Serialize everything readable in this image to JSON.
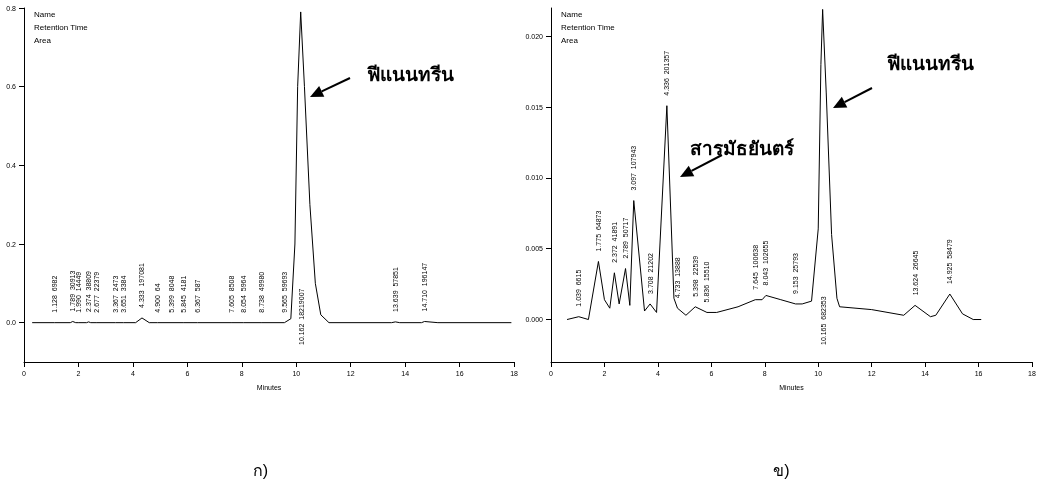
{
  "chart_data": [
    {
      "type": "line",
      "title": "ก)",
      "xlabel": "Minutes",
      "xlim": [
        0,
        18
      ],
      "xticks": [
        0,
        2,
        4,
        6,
        8,
        10,
        12,
        14,
        16,
        18
      ],
      "ylim": [
        -0.1,
        0.8
      ],
      "yticks": [
        {
          "value": 0,
          "label": "0.0"
        },
        0.2,
        0.4,
        0.6,
        0.8
      ],
      "annotations": [
        "Name",
        "Retention Time",
        "Area",
        "ฟีแนนทรีน",
        "10.162  18219007",
        {
          "text": "1.128  6982",
          "x": 1.128,
          "y": 0
        },
        {
          "text": "1.789  30913",
          "x": 1.789,
          "y": 0.003
        },
        {
          "text": "1.990  14449",
          "x": 1.99,
          "y": 0
        },
        {
          "text": "2.374  38809",
          "x": 2.374,
          "y": 0.002
        },
        {
          "text": "2.677  22379",
          "x": 2.677,
          "y": 0
        },
        {
          "text": "3.367  2473",
          "x": 3.367,
          "y": 0
        },
        {
          "text": "3.651  3384",
          "x": 3.651,
          "y": 0
        },
        {
          "text": "4.333  197081",
          "x": 4.333,
          "y": 0.012
        },
        {
          "text": "4.900  64",
          "x": 4.9,
          "y": 0
        },
        {
          "text": "5.399  8048",
          "x": 5.399,
          "y": 0
        },
        {
          "text": "5.845  4181",
          "x": 5.845,
          "y": 0
        },
        {
          "text": "6.367  587",
          "x": 6.367,
          "y": 0
        },
        {
          "text": "7.605  8508",
          "x": 7.605,
          "y": 0
        },
        {
          "text": "8.054  5964",
          "x": 8.054,
          "y": 0
        },
        {
          "text": "8.738  49980",
          "x": 8.738,
          "y": 0
        },
        {
          "text": "9.565  59693",
          "x": 9.565,
          "y": 0
        },
        {
          "text": "13.639  57851",
          "x": 13.639,
          "y": 0.002
        },
        {
          "text": "14.710  196147",
          "x": 14.71,
          "y": 0.003
        }
      ],
      "series": [
        {
          "color": "#000000",
          "marker": "none",
          "x": [
            0.3,
            1.128,
            1.7,
            1.789,
            1.9,
            1.99,
            2.3,
            2.374,
            2.45,
            2.677,
            3.367,
            3.651,
            4.1,
            4.333,
            4.6,
            4.9,
            5.399,
            5.845,
            6.367,
            7.605,
            8.054,
            8.738,
            9.565,
            9.8,
            9.95,
            10.05,
            10.162,
            10.3,
            10.5,
            10.7,
            10.9,
            11.2,
            13.5,
            13.639,
            13.8,
            14.6,
            14.71,
            15.2,
            17.9
          ],
          "values": [
            0,
            0,
            0,
            0.003,
            0,
            0,
            0,
            0.002,
            0,
            0,
            0,
            0,
            0,
            0.012,
            0,
            0,
            0,
            0,
            0,
            0,
            0,
            0,
            0,
            0.01,
            0.2,
            0.6,
            0.79,
            0.6,
            0.3,
            0.1,
            0.02,
            0,
            0,
            0.002,
            0,
            0,
            0.003,
            0,
            0
          ]
        }
      ]
    },
    {
      "type": "line",
      "title": "ข)",
      "xlabel": "Minutes",
      "xlim": [
        0,
        18
      ],
      "xticks": [
        0,
        2,
        4,
        6,
        8,
        10,
        12,
        14,
        16,
        18
      ],
      "ylim": [
        -0.003,
        0.022
      ],
      "yticks": [
        {
          "value": 0,
          "label": "0.000"
        },
        {
          "value": 0.005,
          "label": "0.005"
        },
        {
          "value": 0.01,
          "label": "0.010"
        },
        {
          "value": 0.015,
          "label": "0.015"
        },
        {
          "value": 0.02,
          "label": "0.020"
        }
      ],
      "annotations": [
        "Name",
        "Retention Time",
        "Area",
        "สารมัธยันตร์",
        "ฟีแนนทรีน",
        "10.165  682353",
        {
          "text": "1.039  6615",
          "x": 1.039,
          "y": 0.0002
        },
        {
          "text": "1.775  64873",
          "x": 1.775,
          "y": 0.0041
        },
        {
          "text": "2.372  41891",
          "x": 2.372,
          "y": 0.0033
        },
        {
          "text": "2.789  50717",
          "x": 2.789,
          "y": 0.0036
        },
        {
          "text": "3.097  107943",
          "x": 3.097,
          "y": 0.0084
        },
        {
          "text": "3.708  21202",
          "x": 3.708,
          "y": 0.0011
        },
        {
          "text": "4.336  201357",
          "x": 4.336,
          "y": 0.0151
        },
        {
          "text": "4.733  13888",
          "x": 4.733,
          "y": 0.0008
        },
        {
          "text": "5.398  22539",
          "x": 5.398,
          "y": 0.0009
        },
        {
          "text": "5.836  15510",
          "x": 5.836,
          "y": 0.0005
        },
        {
          "text": "7.645  100638",
          "x": 7.645,
          "y": 0.0014
        },
        {
          "text": "8.043  102655",
          "x": 8.043,
          "y": 0.0017
        },
        {
          "text": "9.153  25793",
          "x": 9.153,
          "y": 0.0011
        },
        {
          "text": "13.624  26645",
          "x": 13.624,
          "y": 0.001
        },
        {
          "text": "14.925  58479",
          "x": 14.925,
          "y": 0.0018
        }
      ],
      "series": [
        {
          "color": "#000000",
          "marker": "none",
          "x": [
            0.6,
            1.039,
            1.4,
            1.775,
            2.0,
            2.2,
            2.372,
            2.55,
            2.789,
            2.95,
            3.097,
            3.5,
            3.708,
            3.95,
            4.336,
            4.6,
            4.733,
            5.05,
            5.398,
            5.836,
            6.2,
            7.0,
            7.645,
            7.9,
            8.043,
            8.6,
            9.153,
            9.4,
            9.75,
            10.0,
            10.1,
            10.165,
            10.3,
            10.5,
            10.7,
            10.8,
            12.0,
            13.2,
            13.624,
            14.2,
            14.4,
            14.925,
            15.4,
            15.8,
            16.1
          ],
          "values": [
            0,
            0.0002,
            0,
            0.0041,
            0.0014,
            0.0008,
            0.0033,
            0.0011,
            0.0036,
            0.001,
            0.0084,
            0.0006,
            0.0011,
            0.0005,
            0.0151,
            0.0015,
            0.0008,
            0.0003,
            0.0009,
            0.0005,
            0.0005,
            0.0009,
            0.0014,
            0.0014,
            0.0017,
            0.0014,
            0.0011,
            0.0011,
            0.0013,
            0.0064,
            0.018,
            0.0219,
            0.016,
            0.006,
            0.0015,
            0.0009,
            0.0007,
            0.0003,
            0.001,
            0.0002,
            0.0003,
            0.0018,
            0.0004,
            0,
            0
          ]
        }
      ]
    }
  ]
}
